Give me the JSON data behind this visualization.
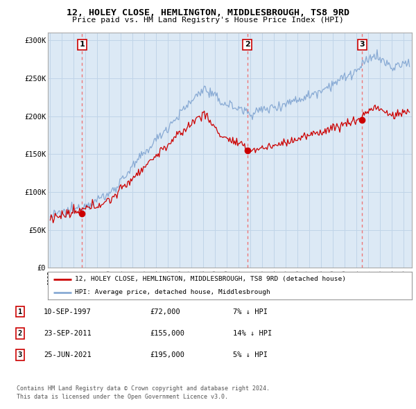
{
  "title_line1": "12, HOLEY CLOSE, HEMLINGTON, MIDDLESBROUGH, TS8 9RD",
  "title_line2": "Price paid vs. HM Land Registry's House Price Index (HPI)",
  "yticks": [
    0,
    50000,
    100000,
    150000,
    200000,
    250000,
    300000
  ],
  "ytick_labels": [
    "£0",
    "£50K",
    "£100K",
    "£150K",
    "£200K",
    "£250K",
    "£300K"
  ],
  "xmin": 1994.8,
  "xmax": 2025.7,
  "ymin": 0,
  "ymax": 310000,
  "property_color": "#cc0000",
  "hpi_color": "#88aad4",
  "chart_bg": "#dce9f5",
  "dashed_line_color": "#ee7777",
  "sale_points": [
    {
      "year": 1997.71,
      "price": 72000,
      "label": "1"
    },
    {
      "year": 2011.73,
      "price": 155000,
      "label": "2"
    },
    {
      "year": 2021.48,
      "price": 195000,
      "label": "3"
    }
  ],
  "legend_line1": "12, HOLEY CLOSE, HEMLINGTON, MIDDLESBROUGH, TS8 9RD (detached house)",
  "legend_line2": "HPI: Average price, detached house, Middlesbrough",
  "table_rows": [
    {
      "num": "1",
      "date": "10-SEP-1997",
      "price": "£72,000",
      "hpi": "7% ↓ HPI"
    },
    {
      "num": "2",
      "date": "23-SEP-2011",
      "price": "£155,000",
      "hpi": "14% ↓ HPI"
    },
    {
      "num": "3",
      "date": "25-JUN-2021",
      "price": "£195,000",
      "hpi": "5% ↓ HPI"
    }
  ],
  "footnote_line1": "Contains HM Land Registry data © Crown copyright and database right 2024.",
  "footnote_line2": "This data is licensed under the Open Government Licence v3.0.",
  "background_color": "#ffffff",
  "grid_color": "#c0d4e8",
  "border_color": "#aaaaaa"
}
